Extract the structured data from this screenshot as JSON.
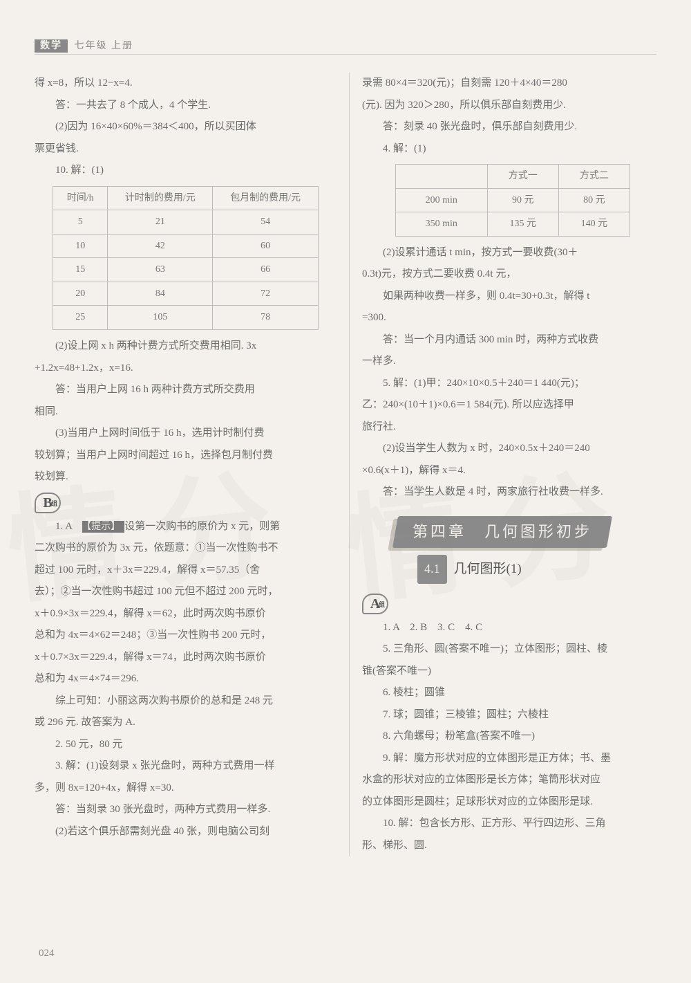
{
  "header": {
    "subject": "数学",
    "grade": "七年级 上册"
  },
  "left": {
    "l01": "得 x=8，所以 12−x=4.",
    "l02": "答：一共去了 8 个成人，4 个学生.",
    "l03": "(2)因为 16×40×60%＝384＜400，所以买团体",
    "l04": "票更省钱.",
    "l05": "10. 解：(1)",
    "table1": {
      "headers": [
        "时间/h",
        "计时制的费用/元",
        "包月制的费用/元"
      ],
      "rows": [
        [
          "5",
          "21",
          "54"
        ],
        [
          "10",
          "42",
          "60"
        ],
        [
          "15",
          "63",
          "66"
        ],
        [
          "20",
          "84",
          "72"
        ],
        [
          "25",
          "105",
          "78"
        ]
      ]
    },
    "l06": "(2)设上网 x h 两种计费方式所交费用相同. 3x",
    "l07": "+1.2x=48+1.2x，x=16.",
    "l08": "答：当用户上网 16 h 两种计费方式所交费用",
    "l09": "相同.",
    "l10": "(3)当用户上网时间低于 16 h，选用计时制付费",
    "l11": "较划算；当用户上网时间超过 16 h，选择包月制付费",
    "l12": "较划算.",
    "badgeB": "B",
    "b01": "1. A　【提示】设第一次购书的原价为 x 元，则第",
    "b02": "二次购书的原价为 3x 元，依题意：①当一次性购书不",
    "b03": "超过 100 元时，x＋3x＝229.4，解得 x＝57.35（舍",
    "b04": "去）；②当一次性购书超过 100 元但不超过 200 元时，",
    "b05": "x＋0.9×3x＝229.4，解得 x＝62，此时两次购书原价",
    "b06": "总和为 4x＝4×62＝248；③当一次性购书 200 元时，",
    "b07": "x＋0.7×3x＝229.4，解得 x＝74，此时两次购书原价",
    "b08": "总和为 4x＝4×74＝296.",
    "b09": "综上可知：小丽这两次购书原价的总和是 248 元",
    "b10": "或 296 元. 故答案为 A.",
    "b11": "2. 50 元，80 元",
    "b12": "3. 解：(1)设刻录 x 张光盘时，两种方式费用一样",
    "b13": "多，则 8x=120+4x，解得 x=30.",
    "b14": "答：当刻录 30 张光盘时，两种方式费用一样多.",
    "b15": "(2)若这个俱乐部需刻光盘 40 张，则电脑公司刻"
  },
  "right": {
    "r01": "录需 80×4＝320(元)；自刻需 120＋4×40＝280",
    "r02": "(元). 因为 320＞280，所以俱乐部自刻费用少.",
    "r03": "答：刻录 40 张光盘时，俱乐部自刻费用少.",
    "r04": "4. 解：(1)",
    "table2": {
      "headers": [
        "",
        "方式一",
        "方式二"
      ],
      "rows": [
        [
          "200 min",
          "90 元",
          "80 元"
        ],
        [
          "350 min",
          "135 元",
          "140 元"
        ]
      ]
    },
    "r05": "(2)设累计通话 t min，按方式一要收费(30＋",
    "r06": "0.3t)元，按方式二要收费 0.4t 元，",
    "r07": "如果两种收费一样多，则 0.4t=30+0.3t，解得 t",
    "r08": "=300.",
    "r09": "答：当一个月内通话 300 min 时，两种方式收费",
    "r10": "一样多.",
    "r11": "5. 解：(1)甲：240×10×0.5＋240＝1 440(元)；",
    "r12": "乙：240×(10＋1)×0.6＝1 584(元). 所以应选择甲",
    "r13": "旅行社.",
    "r14": "(2)设当学生人数为 x 时，240×0.5x＋240＝240",
    "r15": "×0.6(x＋1)，解得 x＝4.",
    "r16": "答：当学生人数是 4 时，两家旅行社收费一样多.",
    "chapter": "第四章　几何图形初步",
    "sectionNum": "4.1",
    "sectionTitle": "几何图形(1)",
    "badgeA": "A",
    "a01": "1. A　2. B　3. C　4. C",
    "a02": "5. 三角形、圆(答案不唯一)；立体图形；圆柱、棱",
    "a03": "锥(答案不唯一)",
    "a04": "6. 棱柱；圆锥",
    "a05": "7. 球；圆锥；三棱锥；圆柱；六棱柱",
    "a06": "8. 六角螺母；粉笔盒(答案不唯一)",
    "a07": "9. 解：魔方形状对应的立体图形是正方体；书、墨",
    "a08": "水盒的形状对应的立体图形是长方体；笔筒形状对应",
    "a09": "的立体图形是圆柱；足球形状对应的立体图形是球.",
    "a10": "10. 解：包含长方形、正方形、平行四边形、三角",
    "a11": "形、梯形、圆."
  },
  "pageNumber": "024",
  "watermark": "情 分",
  "hintLabel": "【提示】"
}
